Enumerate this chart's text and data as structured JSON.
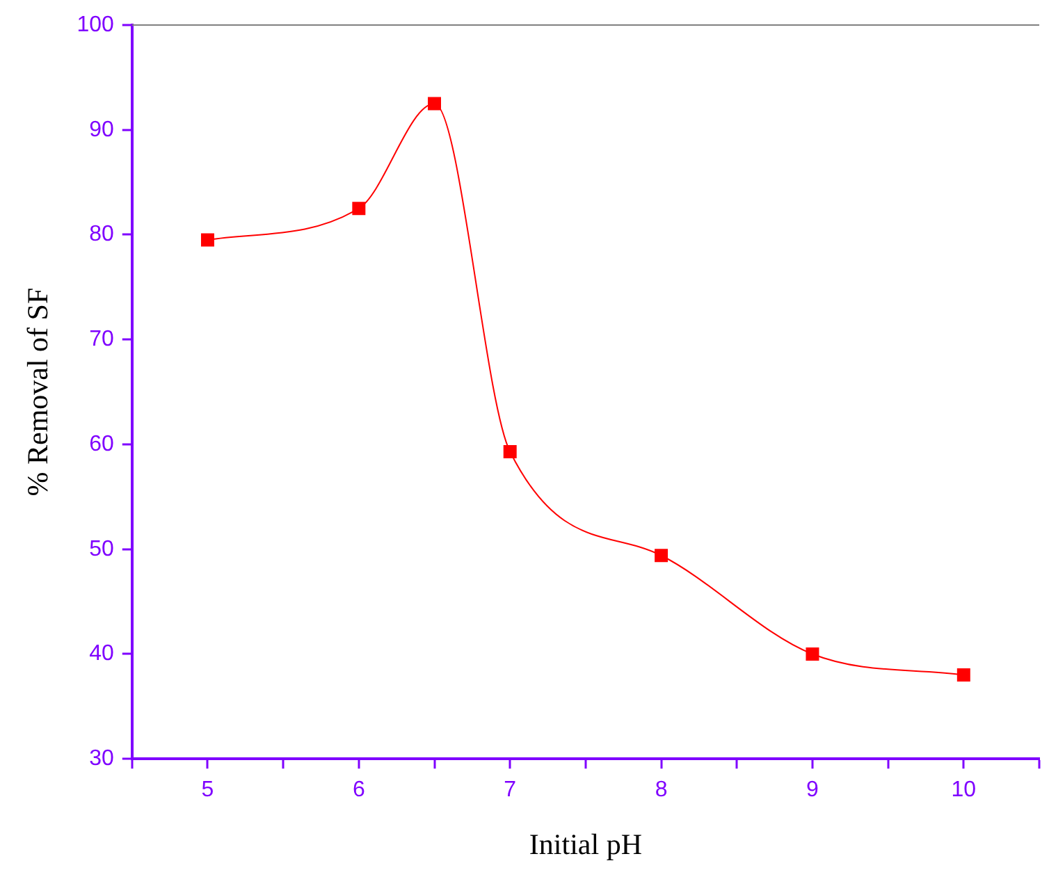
{
  "chart_data": {
    "type": "line",
    "xlabel": "Initial pH",
    "ylabel": "% Removal of SF",
    "x": [
      5,
      6,
      6.5,
      7,
      8,
      9,
      10
    ],
    "series": [
      {
        "color": "#ff0000",
        "values": [
          79.5,
          82.5,
          92.5,
          59.3,
          49.4,
          40,
          38
        ]
      }
    ],
    "xlim": [
      4.5,
      10.5
    ],
    "xticks": [
      {
        "value": 4.5,
        "label": null
      },
      5,
      {
        "value": 5.5,
        "label": null
      },
      6,
      {
        "value": 6.5,
        "label": null
      },
      7,
      {
        "value": 7.5,
        "label": null
      },
      8,
      {
        "value": 8.5,
        "label": null
      },
      9,
      {
        "value": 9.5,
        "label": null
      },
      10,
      {
        "value": 10.5,
        "label": null
      }
    ],
    "ylim": [
      30,
      100
    ],
    "yticks": [
      30,
      40,
      50,
      60,
      70,
      80,
      90,
      100
    ],
    "grid": false,
    "legend": false,
    "marker": "square",
    "line_style": "solid"
  }
}
